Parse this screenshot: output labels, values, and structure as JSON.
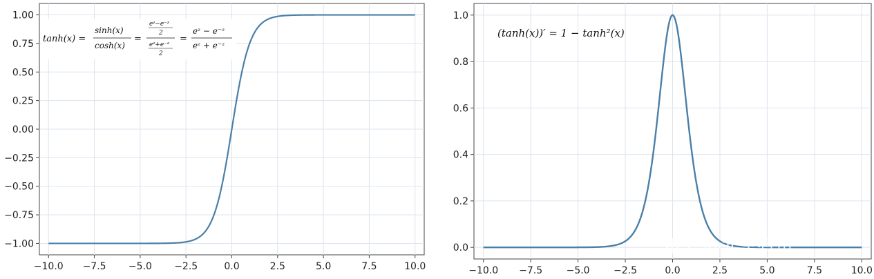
{
  "chart_data": [
    {
      "type": "line",
      "function": "tanh",
      "x": [
        -10,
        -7.5,
        -5,
        -2.5,
        -2,
        -1.5,
        -1,
        -0.5,
        0,
        0.5,
        1,
        1.5,
        2,
        2.5,
        5,
        7.5,
        10
      ],
      "y": [
        -1.0,
        -1.0,
        -0.9999,
        -0.9866,
        -0.964,
        -0.9051,
        -0.7616,
        -0.4621,
        0.0,
        0.4621,
        0.7616,
        0.9051,
        0.964,
        0.9866,
        0.9999,
        1.0,
        1.0
      ],
      "xlim": [
        -10.5,
        10.5
      ],
      "ylim": [
        -1.1,
        1.1
      ],
      "xticks": [
        -10,
        -7.5,
        -5,
        -2.5,
        0,
        2.5,
        5,
        7.5,
        10
      ],
      "xtick_labels": [
        "−10.0",
        "−7.5",
        "−5.0",
        "−2.5",
        "0.0",
        "2.5",
        "5.0",
        "7.5",
        "10.0"
      ],
      "yticks": [
        -1,
        -0.75,
        -0.5,
        -0.25,
        0,
        0.25,
        0.5,
        0.75,
        1
      ],
      "ytick_labels": [
        "−1.00",
        "−0.75",
        "−0.50",
        "−0.25",
        "0.00",
        "0.25",
        "0.50",
        "0.75",
        "1.00"
      ],
      "grid": true,
      "line_color": "#4a7fa8",
      "annotation": {
        "lhs": "tanh(x) =",
        "frac1_num": "sinh(x)",
        "frac1_den": "cosh(x)",
        "frac2_num_num": "eᶻ−e⁻ᶻ",
        "frac2_num_den": "2",
        "frac2_den_num": "eᶻ+e⁻ᶻ",
        "frac2_den_den": "2",
        "frac3_num": "eᶻ − e⁻ᶻ",
        "frac3_den": "eᶻ + e⁻ᶻ"
      }
    },
    {
      "type": "line",
      "function": "tanh_derivative",
      "x": [
        -10,
        -5,
        -3,
        -2.5,
        -2,
        -1.5,
        -1,
        -0.5,
        0,
        0.5,
        1,
        1.5,
        2,
        2.5,
        3,
        5,
        10
      ],
      "y": [
        0.0,
        0.0002,
        0.0099,
        0.0266,
        0.0707,
        0.1807,
        0.42,
        0.7864,
        1.0,
        0.7864,
        0.42,
        0.1807,
        0.0707,
        0.0266,
        0.0099,
        0.0002,
        0.0
      ],
      "xlim": [
        -10.5,
        10.5
      ],
      "ylim": [
        -0.05,
        1.05
      ],
      "xticks": [
        -10,
        -7.5,
        -5,
        -2.5,
        0,
        2.5,
        5,
        7.5,
        10
      ],
      "xtick_labels": [
        "−10.0",
        "−7.5",
        "−5.0",
        "−2.5",
        "0.0",
        "2.5",
        "5.0",
        "7.5",
        "10.0"
      ],
      "yticks": [
        0,
        0.2,
        0.4,
        0.6,
        0.8,
        1.0
      ],
      "ytick_labels": [
        "0.0",
        "0.2",
        "0.4",
        "0.6",
        "0.8",
        "1.0"
      ],
      "grid": true,
      "line_color": "#4a7fa8",
      "annotation": {
        "text": "(tanh(x))′ = 1 − tanh²(x)"
      }
    }
  ],
  "watermark": "知乎 @北冥有鱼"
}
